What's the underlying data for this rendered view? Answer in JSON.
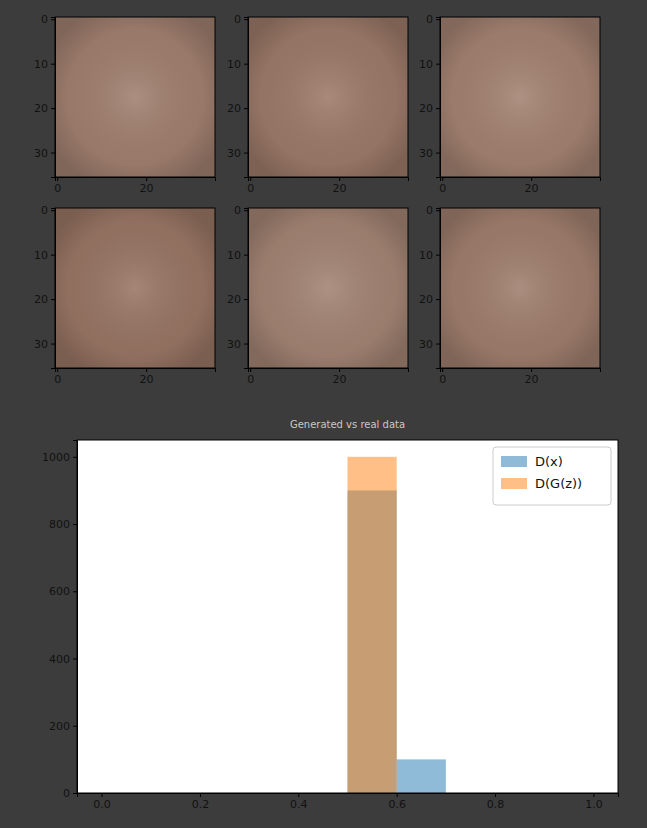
{
  "chart_data": [
    {
      "type": "image",
      "xlim": [
        -0.5,
        35.5
      ],
      "ylim": [
        35.5,
        -0.5
      ],
      "xticks": [
        0,
        20
      ],
      "yticks": [
        0,
        10,
        20,
        30
      ],
      "color": "#a07f6f"
    },
    {
      "type": "image",
      "xlim": [
        -0.5,
        35.5
      ],
      "ylim": [
        35.5,
        -0.5
      ],
      "xticks": [
        0,
        20
      ],
      "yticks": [
        0,
        10,
        20,
        30
      ],
      "color": "#9c7a69"
    },
    {
      "type": "image",
      "xlim": [
        -0.5,
        35.5
      ],
      "ylim": [
        35.5,
        -0.5
      ],
      "xticks": [
        0,
        20
      ],
      "yticks": [
        0,
        10,
        20,
        30
      ],
      "color": "#a38271"
    },
    {
      "type": "image",
      "xlim": [
        -0.5,
        35.5
      ],
      "ylim": [
        35.5,
        -0.5
      ],
      "xticks": [
        0,
        20
      ],
      "yticks": [
        0,
        10,
        20,
        30
      ],
      "color": "#987564"
    },
    {
      "type": "image",
      "xlim": [
        -0.5,
        35.5
      ],
      "ylim": [
        35.5,
        -0.5
      ],
      "xticks": [
        0,
        20
      ],
      "yticks": [
        0,
        10,
        20,
        30
      ],
      "color": "#a28373"
    },
    {
      "type": "image",
      "xlim": [
        -0.5,
        35.5
      ],
      "ylim": [
        35.5,
        -0.5
      ],
      "xticks": [
        0,
        20
      ],
      "yticks": [
        0,
        10,
        20,
        30
      ],
      "color": "#9f7e6d"
    },
    {
      "type": "histogram",
      "title": "Generated vs real data",
      "bins": [
        0.0,
        0.1,
        0.2,
        0.3,
        0.4,
        0.5,
        0.6,
        0.7,
        0.8,
        0.9,
        1.0
      ],
      "series": [
        {
          "name": "D(x)",
          "color": "#1f77b4",
          "values": [
            0,
            0,
            0,
            0,
            0,
            900,
            100,
            0,
            0,
            0
          ]
        },
        {
          "name": "D(G(z))",
          "color": "#ff7f0e",
          "values": [
            0,
            0,
            0,
            0,
            0,
            1000,
            0,
            0,
            0,
            0
          ]
        }
      ],
      "xlim": [
        -0.05,
        1.05
      ],
      "ylim": [
        0,
        1050
      ],
      "xticks": [
        {
          "value": 0,
          "label": "0.0"
        },
        {
          "value": 0.2,
          "label": "0.2"
        },
        {
          "value": 0.4,
          "label": "0.4"
        },
        {
          "value": 0.6,
          "label": "0.6"
        },
        {
          "value": 0.8,
          "label": "0.8"
        },
        {
          "value": 1,
          "label": "1.0"
        }
      ],
      "yticks": [
        0,
        200,
        400,
        600,
        800,
        1000
      ],
      "legend": "upper right"
    }
  ]
}
